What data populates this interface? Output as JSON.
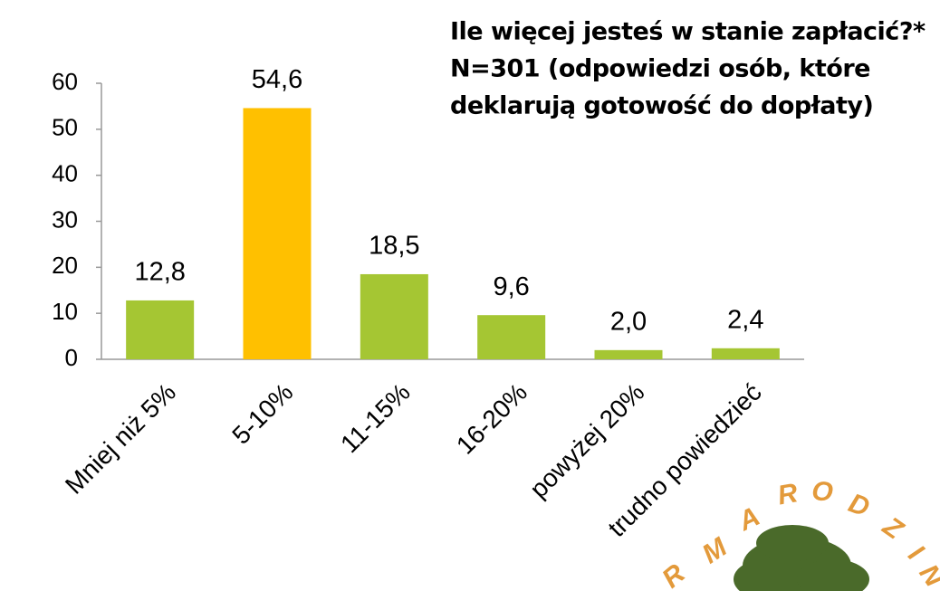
{
  "chart_data": {
    "type": "bar",
    "title": [
      "Ile więcej jesteś w stanie zapłacić?*",
      "N=301 (odpowiedzi osób, które",
      "deklarują gotowość do dopłaty)"
    ],
    "categories": [
      "Mniej niż 5%",
      "5-10%",
      "11-15%",
      "16-20%",
      "powyżej 20%",
      "trudno powiedzieć"
    ],
    "values": [
      12.8,
      54.6,
      18.5,
      9.6,
      2.0,
      2.4
    ],
    "value_labels": [
      "12,8",
      "54,6",
      "18,5",
      "9,6",
      "2,0",
      "2,4"
    ],
    "colors": [
      "#a5c633",
      "#ffc000",
      "#a5c633",
      "#a5c633",
      "#a5c633",
      "#a5c633"
    ],
    "ylim": [
      0,
      60
    ],
    "yticks": [
      0,
      10,
      20,
      30,
      40,
      50,
      60
    ],
    "grid": false
  },
  "logo": {
    "letters": [
      "R",
      "M",
      "A",
      "R",
      "O",
      "D",
      "Z",
      "I",
      "N"
    ]
  }
}
